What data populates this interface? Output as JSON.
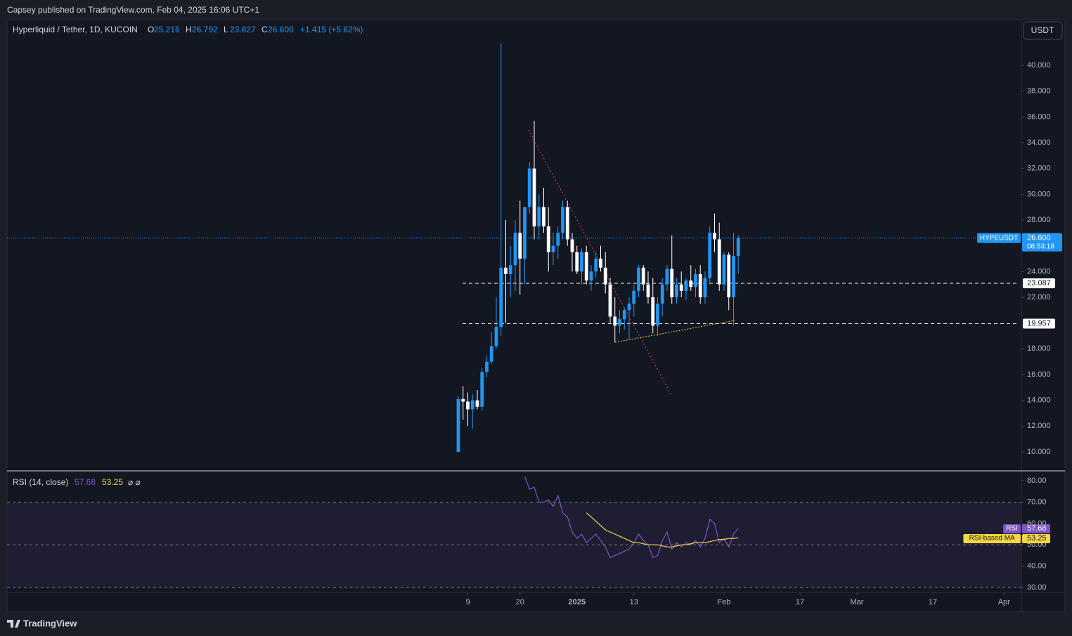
{
  "header": {
    "published": "Capsey published on TradingView.com, Feb 04, 2025 16:06 UTC+1",
    "brand": "TradingView"
  },
  "chart_data": [
    {
      "type": "candlestick",
      "title": "Hyperliquid / Tether, 1D, KUCOIN",
      "currency": "USDT",
      "symbol": "HYPEUSDT",
      "countdown": "08:53:18",
      "legend": [
        {
          "key": "O",
          "label": "25.216"
        },
        {
          "key": "H",
          "label": "26.792"
        },
        {
          "key": "L",
          "label": "23.827"
        },
        {
          "key": "C",
          "label": "26.600"
        }
      ],
      "change": "+1.415 (+5.62%)",
      "up_color": "#2196f3",
      "down_color": "#ffffff",
      "x": [
        "2024-12-07",
        "2024-12-08",
        "2024-12-09",
        "2024-12-10",
        "2024-12-11",
        "2024-12-12",
        "2024-12-13",
        "2024-12-14",
        "2024-12-15",
        "2024-12-16",
        "2024-12-17",
        "2024-12-18",
        "2024-12-19",
        "2024-12-20",
        "2024-12-21",
        "2024-12-22",
        "2024-12-23",
        "2024-12-24",
        "2024-12-25",
        "2024-12-26",
        "2024-12-27",
        "2024-12-28",
        "2024-12-29",
        "2024-12-30",
        "2024-12-31",
        "2025-01-01",
        "2025-01-02",
        "2025-01-03",
        "2025-01-04",
        "2025-01-05",
        "2025-01-06",
        "2025-01-07",
        "2025-01-08",
        "2025-01-09",
        "2025-01-10",
        "2025-01-11",
        "2025-01-12",
        "2025-01-13",
        "2025-01-14",
        "2025-01-15",
        "2025-01-16",
        "2025-01-17",
        "2025-01-18",
        "2025-01-19",
        "2025-01-20",
        "2025-01-21",
        "2025-01-22",
        "2025-01-23",
        "2025-01-24",
        "2025-01-25",
        "2025-01-26",
        "2025-01-27",
        "2025-01-28",
        "2025-01-29",
        "2025-01-30",
        "2025-01-31",
        "2025-02-01",
        "2025-02-02",
        "2025-02-03",
        "2025-02-04"
      ],
      "open": [
        10.0,
        14.1,
        13.9,
        13.3,
        14.0,
        13.5,
        16.2,
        17.0,
        18.2,
        19.7,
        24.3,
        23.8,
        24.5,
        27.0,
        25.0,
        29.0,
        32.0,
        27.5,
        29.0,
        27.5,
        25.5,
        26.0,
        27.0,
        29.0,
        26.5,
        25.5,
        24.0,
        25.5,
        23.3,
        24.0,
        25.0,
        24.3,
        23.0,
        20.5,
        19.8,
        20.3,
        21.0,
        21.5,
        22.5,
        24.3,
        23.0,
        22.0,
        19.8,
        21.5,
        23.0,
        24.2,
        22.0,
        23.0,
        22.5,
        23.3,
        22.8,
        23.8,
        22.0,
        23.5,
        27.0,
        26.5,
        23.0,
        25.3,
        22.0,
        25.216
      ],
      "high": [
        14.3,
        15.1,
        14.6,
        14.5,
        14.8,
        16.5,
        17.5,
        19.3,
        22.0,
        41.7,
        28.0,
        26.0,
        28.0,
        29.5,
        29.0,
        32.5,
        35.7,
        30.0,
        30.5,
        29.0,
        27.0,
        27.5,
        29.5,
        29.5,
        27.0,
        26.0,
        25.8,
        26.0,
        24.5,
        25.5,
        26.0,
        25.5,
        23.5,
        22.0,
        21.0,
        21.2,
        22.0,
        23.0,
        24.5,
        24.5,
        24.0,
        23.5,
        22.0,
        23.5,
        24.5,
        26.8,
        23.5,
        24.0,
        23.5,
        24.5,
        24.2,
        24.5,
        24.0,
        27.5,
        28.5,
        27.8,
        25.5,
        25.5,
        27.0,
        26.792
      ],
      "low": [
        10.0,
        12.5,
        12.0,
        11.8,
        13.3,
        13.2,
        15.8,
        16.8,
        18.0,
        19.0,
        20.0,
        22.0,
        22.5,
        22.2,
        23.0,
        28.5,
        26.5,
        26.5,
        27.0,
        24.0,
        24.5,
        25.0,
        26.5,
        26.0,
        24.0,
        23.8,
        23.0,
        23.0,
        22.5,
        23.5,
        24.0,
        22.3,
        20.0,
        18.5,
        19.2,
        19.5,
        18.7,
        20.5,
        22.0,
        22.5,
        21.5,
        19.2,
        19.0,
        20.5,
        22.5,
        21.5,
        21.5,
        22.0,
        21.8,
        22.5,
        22.0,
        21.5,
        21.5,
        23.0,
        25.5,
        22.5,
        22.5,
        21.0,
        19.8,
        23.827
      ],
      "close": [
        14.1,
        13.9,
        13.3,
        14.0,
        13.5,
        16.2,
        17.0,
        18.2,
        19.7,
        24.3,
        23.8,
        24.5,
        27.0,
        25.0,
        29.0,
        32.0,
        27.5,
        29.0,
        27.5,
        25.5,
        26.0,
        27.0,
        29.0,
        26.5,
        25.5,
        24.0,
        25.5,
        23.3,
        24.0,
        25.0,
        24.3,
        23.0,
        20.5,
        19.8,
        20.3,
        21.0,
        21.5,
        22.5,
        24.3,
        23.0,
        22.0,
        19.8,
        21.5,
        23.0,
        24.2,
        22.0,
        23.0,
        22.5,
        23.3,
        22.8,
        23.8,
        22.0,
        23.5,
        27.0,
        26.5,
        23.0,
        25.3,
        22.0,
        25.216,
        26.6
      ],
      "last_price": {
        "value": 26.6,
        "label": "26.600"
      },
      "levels": [
        23.087,
        19.957
      ],
      "ylim": [
        8.58,
        43.55
      ],
      "yticks": [
        {
          "value": 10,
          "label": "10.000"
        },
        {
          "value": 12,
          "label": "12.000"
        },
        {
          "value": 14,
          "label": "14.000"
        },
        {
          "value": 16,
          "label": "16.000"
        },
        {
          "value": 18,
          "label": "18.000"
        },
        {
          "value": 22,
          "label": "22.000"
        },
        {
          "value": 24,
          "label": "24.000"
        },
        {
          "value": 28,
          "label": "28.000"
        },
        {
          "value": 30,
          "label": "30.000"
        },
        {
          "value": 32,
          "label": "32.000"
        },
        {
          "value": 34,
          "label": "34.000"
        },
        {
          "value": 36,
          "label": "36.000"
        },
        {
          "value": 38,
          "label": "38.000"
        },
        {
          "value": 40,
          "label": "40.000"
        }
      ],
      "xticks": [
        {
          "value": "2024-12-09",
          "label": "9"
        },
        {
          "value": "2024-12-20",
          "label": "20"
        },
        {
          "value": "2025-01-01",
          "label": "2025"
        },
        {
          "value": "2025-01-13",
          "label": "13"
        },
        {
          "value": "2025-02-01",
          "label": "Feb"
        },
        {
          "value": "2025-02-17",
          "label": "17"
        },
        {
          "value": "2025-03-01",
          "label": "Mar"
        },
        {
          "value": "2025-03-17",
          "label": "17"
        },
        {
          "value": "2025-04-01",
          "label": "Apr"
        }
      ]
    },
    {
      "type": "line",
      "title": "RSI (14, close)",
      "legend_extra": "⌀ ⌀",
      "series": [
        {
          "name": "RSI",
          "color": "#7e57c2",
          "values": [
            null,
            null,
            null,
            null,
            null,
            null,
            null,
            null,
            null,
            null,
            null,
            null,
            null,
            null,
            82,
            76,
            77,
            70,
            70,
            71,
            68,
            73,
            65,
            63,
            56,
            53,
            55,
            51,
            53,
            55,
            52,
            49,
            44,
            45,
            46,
            47,
            48,
            51,
            55,
            52,
            50,
            44,
            45,
            52,
            56,
            48,
            51,
            49,
            51,
            50,
            52,
            49,
            53,
            62,
            60,
            51,
            53,
            49,
            55,
            57.68
          ]
        },
        {
          "name": "RSI-based MA",
          "color": "#f5d742",
          "values": [
            null,
            null,
            null,
            null,
            null,
            null,
            null,
            null,
            null,
            null,
            null,
            null,
            null,
            null,
            null,
            null,
            null,
            null,
            null,
            null,
            null,
            null,
            null,
            null,
            null,
            null,
            null,
            65,
            63,
            61,
            59,
            57,
            56,
            55,
            54,
            53,
            52,
            51,
            51,
            50.5,
            50,
            50,
            50,
            49.5,
            49,
            49,
            49.5,
            50,
            50,
            50.5,
            51,
            51,
            51,
            51.5,
            52,
            52.5,
            52.5,
            53,
            53,
            53.25
          ]
        }
      ],
      "band": [
        30,
        70
      ],
      "hlines": [
        70,
        50,
        30
      ],
      "ylim": [
        27.7,
        84.3
      ],
      "yticks": [
        {
          "value": 30,
          "label": "30.00"
        },
        {
          "value": 40,
          "label": "40.00"
        },
        {
          "value": 50,
          "label": "50.00"
        },
        {
          "value": 60,
          "label": "60.00"
        },
        {
          "value": 70,
          "label": "70.00"
        },
        {
          "value": 80,
          "label": "80.00"
        }
      ]
    }
  ]
}
